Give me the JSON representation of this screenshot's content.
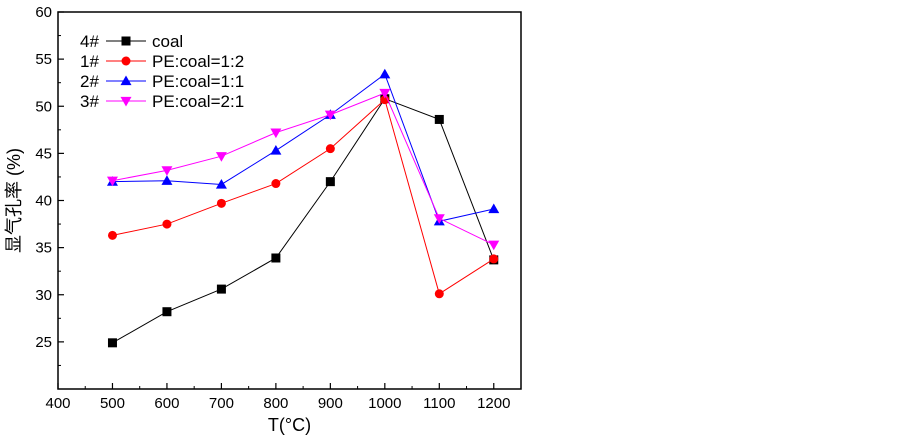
{
  "chart_data": {
    "type": "line",
    "xlabel": "T(°C)",
    "ylabel": "显气孔率 (%)",
    "xlim": [
      400,
      1250
    ],
    "ylim": [
      20,
      60
    ],
    "xticks": [
      400,
      500,
      600,
      700,
      800,
      900,
      1000,
      1100,
      1200
    ],
    "yticks": [
      25,
      30,
      35,
      40,
      45,
      50,
      55,
      60
    ],
    "legend_position": "top-left",
    "x": [
      500,
      600,
      700,
      800,
      900,
      1000,
      1100,
      1200
    ],
    "series": [
      {
        "id": "4#",
        "name": "coal",
        "color": "#000000",
        "marker": "square",
        "values": [
          24.9,
          28.2,
          30.6,
          33.9,
          42.0,
          50.8,
          48.6,
          33.7
        ]
      },
      {
        "id": "1#",
        "name": "PE:coal=1:2",
        "color": "#ff0000",
        "marker": "circle",
        "values": [
          36.3,
          37.5,
          39.7,
          41.8,
          45.5,
          50.7,
          30.1,
          33.8
        ]
      },
      {
        "id": "2#",
        "name": "PE:coal=1:1",
        "color": "#0000ff",
        "marker": "triangle-up",
        "values": [
          42.0,
          42.1,
          41.7,
          45.3,
          49.1,
          53.4,
          37.8,
          39.1
        ]
      },
      {
        "id": "3#",
        "name": "PE:coal=2:1",
        "color": "#ff00ff",
        "marker": "triangle-down",
        "values": [
          42.1,
          43.2,
          44.7,
          47.2,
          49.1,
          51.4,
          38.1,
          35.3
        ]
      }
    ]
  }
}
